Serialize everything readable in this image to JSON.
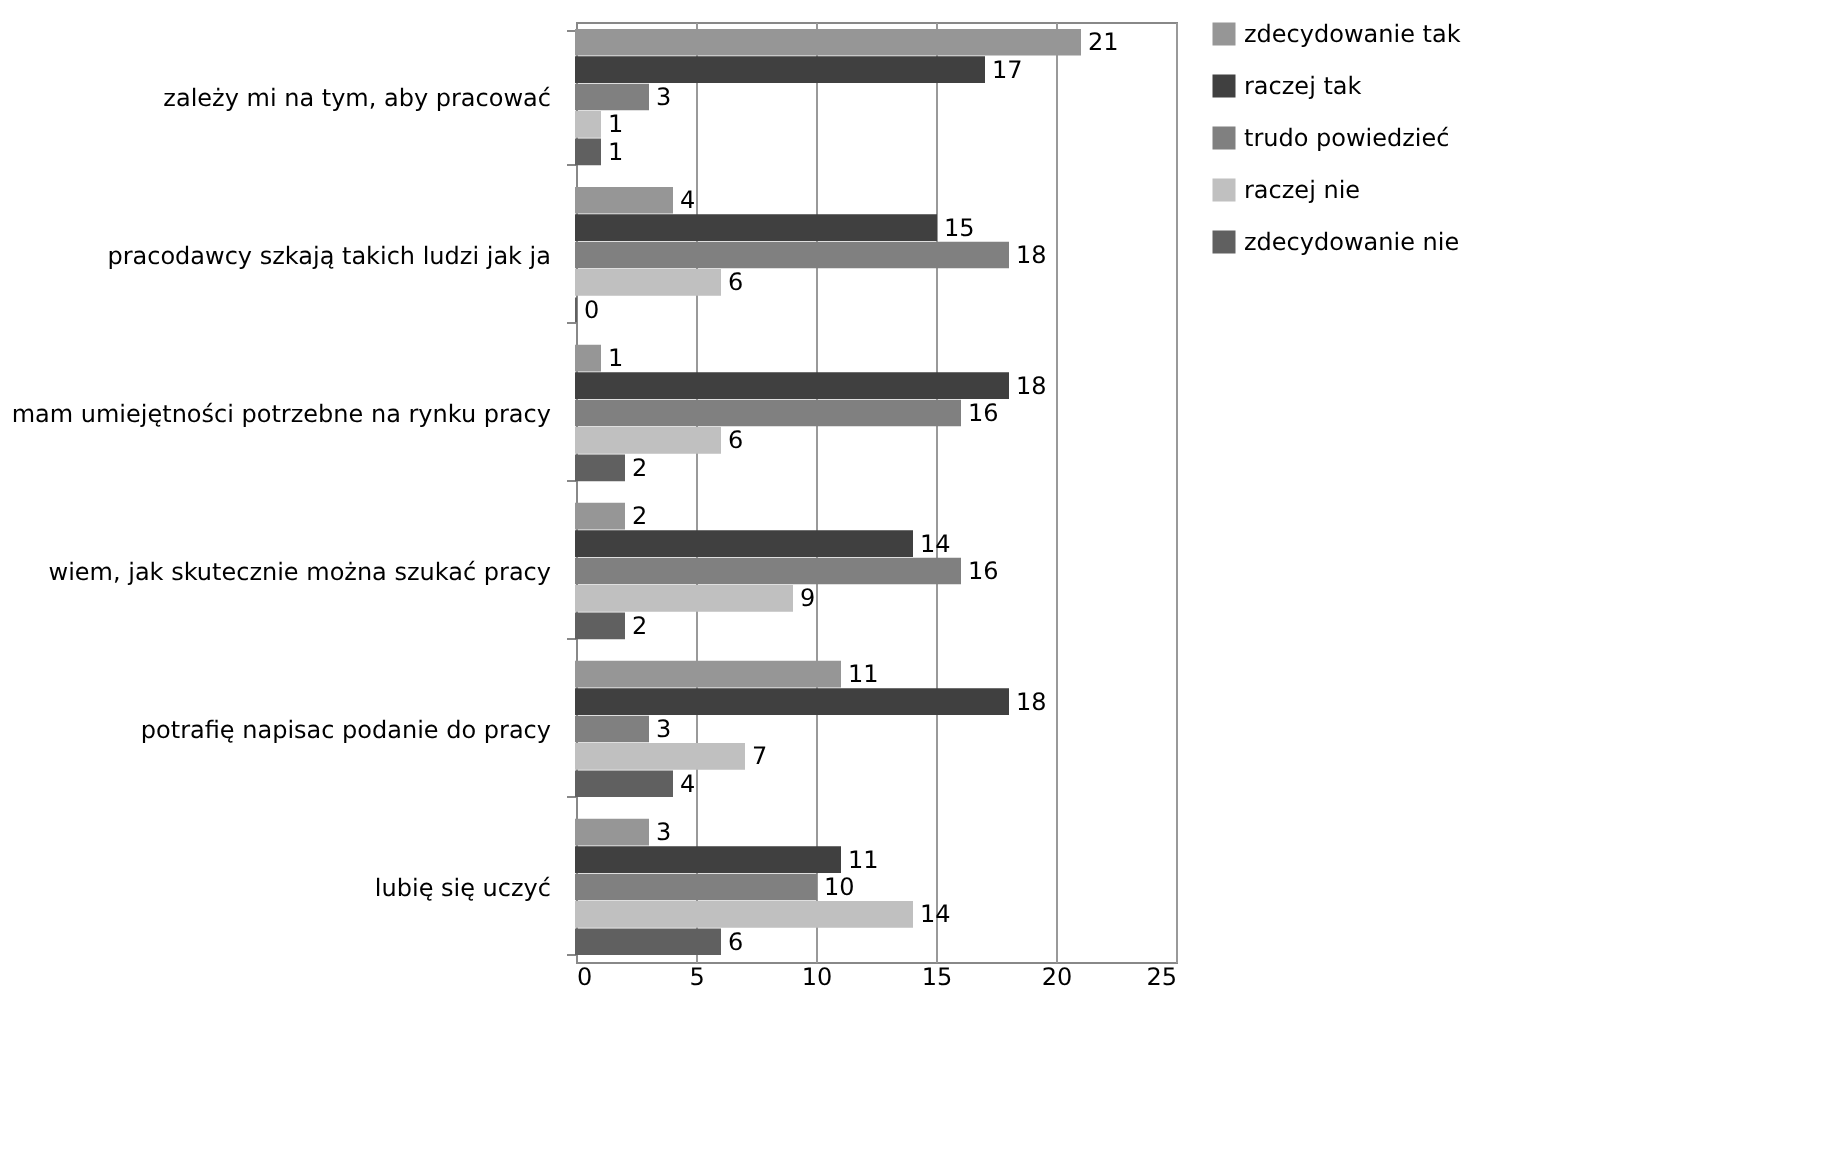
{
  "chart_data": {
    "type": "bar",
    "orientation": "horizontal",
    "categories": [
      "zależy mi na tym, aby pracować",
      "pracodawcy szkają takich ludzi jak ja",
      "mam umiejętności potrzebne na rynku pracy",
      "wiem, jak skutecznie można szukać pracy",
      "potrafię napisac podanie do pracy",
      "lubię się uczyć"
    ],
    "series": [
      {
        "name": "zdecydowanie tak",
        "color": "#969696",
        "values": [
          21,
          4,
          1,
          2,
          11,
          3
        ]
      },
      {
        "name": "raczej tak",
        "color": "#404040",
        "values": [
          17,
          15,
          18,
          14,
          18,
          11
        ]
      },
      {
        "name": "trudo powiedzieć",
        "color": "#808080",
        "values": [
          3,
          18,
          16,
          16,
          3,
          10
        ]
      },
      {
        "name": "raczej nie",
        "color": "#c0c0c0",
        "values": [
          1,
          6,
          6,
          9,
          7,
          14
        ]
      },
      {
        "name": "zdecydowanie nie",
        "color": "#606060",
        "values": [
          1,
          0,
          2,
          2,
          4,
          6
        ]
      }
    ],
    "xlim": [
      0,
      25
    ],
    "xticks": [
      0,
      5,
      10,
      15,
      20,
      25
    ],
    "grid": "x",
    "legend": "right",
    "data_labels": true
  }
}
